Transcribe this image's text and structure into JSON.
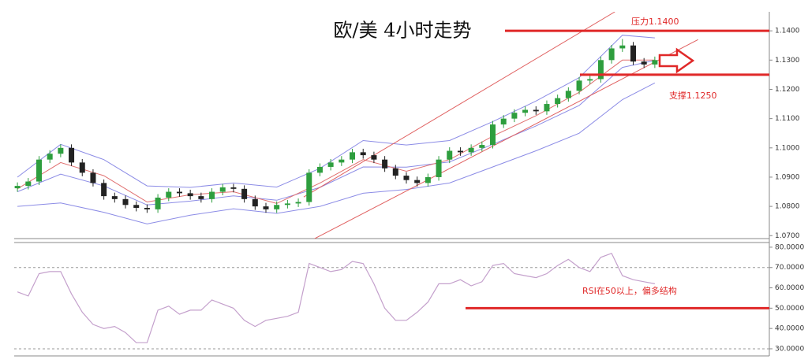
{
  "chart_data": [
    {
      "type": "candlestick",
      "title": "欧/美 4小时走势",
      "open": [
        1.0862,
        1.087,
        1.0885,
        1.096,
        1.098,
        1.1,
        1.095,
        1.0915,
        1.088,
        1.0835,
        1.0825,
        1.0805,
        1.0795,
        1.079,
        1.083,
        1.085,
        1.0845,
        1.0835,
        1.0825,
        1.085,
        1.0865,
        1.086,
        1.0825,
        1.08,
        1.079,
        1.0805,
        1.081,
        1.0815,
        1.0915,
        1.0935,
        1.095,
        1.096,
        1.0985,
        1.0975,
        1.096,
        1.093,
        1.0905,
        1.089,
        1.088,
        1.09,
        1.096,
        1.099,
        1.0985,
        1.1,
        1.101,
        1.108,
        1.11,
        1.112,
        1.113,
        1.1125,
        1.115,
        1.117,
        1.1195,
        1.123,
        1.1235,
        1.13,
        1.134,
        1.135,
        1.1295,
        1.1285
      ],
      "high": [
        1.0882,
        1.0897,
        1.0972,
        1.0992,
        1.1012,
        1.1012,
        1.0962,
        1.0927,
        1.0892,
        1.0847,
        1.0837,
        1.0817,
        1.0807,
        1.0842,
        1.0862,
        1.0862,
        1.0857,
        1.0847,
        1.0862,
        1.0877,
        1.0877,
        1.0872,
        1.0837,
        1.0812,
        1.0817,
        1.0822,
        1.0827,
        1.0927,
        1.0947,
        1.0962,
        1.0972,
        1.0997,
        1.0997,
        1.0987,
        1.0972,
        1.0942,
        1.0917,
        1.0902,
        1.0912,
        1.0972,
        1.1002,
        1.1002,
        1.1012,
        1.1022,
        1.1092,
        1.1112,
        1.1132,
        1.1142,
        1.1142,
        1.1162,
        1.1182,
        1.1207,
        1.1242,
        1.1247,
        1.1312,
        1.1352,
        1.1372,
        1.1362,
        1.1307,
        1.1312
      ],
      "low": [
        1.085,
        1.0858,
        1.0873,
        1.0948,
        1.0968,
        1.0938,
        1.0903,
        1.0868,
        1.0823,
        1.0813,
        1.0793,
        1.0783,
        1.0778,
        1.0778,
        1.0818,
        1.0833,
        1.0823,
        1.0813,
        1.0813,
        1.0838,
        1.0848,
        1.0813,
        1.0788,
        1.0778,
        1.0778,
        1.0793,
        1.0798,
        1.0803,
        1.0903,
        1.0923,
        1.0938,
        1.0948,
        1.0963,
        1.0948,
        1.0918,
        1.0893,
        1.0878,
        1.0868,
        1.0868,
        1.0888,
        1.0948,
        1.0973,
        1.0973,
        1.0988,
        1.0998,
        1.1068,
        1.1088,
        1.1108,
        1.1113,
        1.1113,
        1.1138,
        1.1158,
        1.1183,
        1.1218,
        1.1223,
        1.1288,
        1.1328,
        1.1283,
        1.1273,
        1.1273
      ],
      "close": [
        1.087,
        1.0885,
        1.096,
        1.098,
        1.1,
        1.095,
        1.0915,
        1.088,
        1.0835,
        1.0825,
        1.0805,
        1.0795,
        1.079,
        1.083,
        1.085,
        1.0845,
        1.0835,
        1.0825,
        1.085,
        1.0865,
        1.086,
        1.0825,
        1.08,
        1.079,
        1.0805,
        1.081,
        1.0815,
        1.0915,
        1.0935,
        1.095,
        1.096,
        1.0985,
        1.0975,
        1.096,
        1.093,
        1.0905,
        1.089,
        1.088,
        1.09,
        1.096,
        1.099,
        1.0985,
        1.1,
        1.101,
        1.108,
        1.11,
        1.112,
        1.113,
        1.1125,
        1.115,
        1.117,
        1.1195,
        1.123,
        1.1235,
        1.13,
        1.134,
        1.135,
        1.1295,
        1.1285,
        1.13
      ],
      "up_color": "#2e9e3e",
      "down_color": "#222222",
      "xlim": [
        -0.3,
        69.6
      ],
      "ylim": [
        1.069,
        1.1465
      ],
      "yticks": [
        {
          "value": 1.07,
          "label": "1.0700"
        },
        {
          "value": 1.08,
          "label": "1.0800"
        },
        {
          "value": 1.09,
          "label": "1.0900"
        },
        {
          "value": 1.1,
          "label": "1.1000"
        },
        {
          "value": 1.11,
          "label": "1.1100"
        },
        {
          "value": 1.12,
          "label": "1.1200"
        },
        {
          "value": 1.13,
          "label": "1.1300"
        },
        {
          "value": 1.14,
          "label": "1.1400"
        }
      ],
      "bands": {
        "color": "#8c8ce6",
        "x": [
          0,
          4,
          8,
          12,
          16,
          20,
          24,
          28,
          32,
          36,
          40,
          44,
          48,
          52,
          56,
          59
        ],
        "upper": [
          1.09,
          1.1012,
          1.096,
          1.087,
          1.0865,
          1.088,
          1.0866,
          1.093,
          1.1025,
          1.101,
          1.1025,
          1.109,
          1.116,
          1.124,
          1.1385,
          1.1376
        ],
        "middle": [
          1.085,
          1.091,
          1.087,
          1.0805,
          1.0818,
          1.0836,
          1.0821,
          1.0865,
          1.0935,
          1.0934,
          1.0952,
          1.1012,
          1.1075,
          1.1145,
          1.1275,
          1.1299
        ],
        "lower": [
          1.08,
          1.0812,
          1.078,
          1.074,
          1.077,
          1.0792,
          1.0776,
          1.08,
          1.0845,
          1.0858,
          1.088,
          1.0935,
          1.099,
          1.105,
          1.1165,
          1.1222
        ]
      },
      "ma": {
        "color": "#e07070",
        "x": [
          0,
          4,
          8,
          12,
          16,
          20,
          24,
          28,
          32,
          36,
          40,
          44,
          48,
          52,
          56,
          59
        ],
        "values": [
          1.086,
          1.095,
          1.0905,
          1.0815,
          1.084,
          1.085,
          1.081,
          1.088,
          1.096,
          1.092,
          1.096,
          1.104,
          1.111,
          1.119,
          1.13,
          1.13
        ]
      },
      "trendlines": [
        {
          "color": "#e06060",
          "points": [
            26.5,
            1.0832,
            55.3,
            1.1465
          ]
        },
        {
          "color": "#e06060",
          "points": [
            27.2,
            1.0684,
            63,
            1.137
          ]
        }
      ],
      "levels": [
        {
          "label": "压力1.1400",
          "value": 1.14,
          "color": "#e02828"
        },
        {
          "label": "支撑1.1250",
          "value": 1.125,
          "color": "#e02828"
        }
      ]
    },
    {
      "type": "line",
      "values": [
        58,
        56,
        67,
        68,
        68,
        57,
        48,
        42,
        40,
        41,
        38,
        33,
        33,
        49,
        51,
        47,
        49,
        49,
        54,
        52,
        50,
        44,
        41,
        44,
        45,
        46,
        48,
        72,
        70,
        68,
        69,
        73,
        72,
        62,
        50,
        44,
        44,
        48,
        53,
        62,
        62,
        64,
        61,
        63,
        71,
        72,
        67,
        66,
        65,
        67,
        71,
        74,
        70,
        68,
        75,
        77,
        66,
        64,
        63,
        62
      ],
      "color": "#c4a0cc",
      "xlim": [
        -0.3,
        69.6
      ],
      "ylim": [
        26.5,
        82.3
      ],
      "yticks": [
        {
          "value": 30,
          "label": "30.0000"
        },
        {
          "value": 40,
          "label": "40.0000"
        },
        {
          "value": 50,
          "label": "50.0000"
        },
        {
          "value": 60,
          "label": "60.0000"
        },
        {
          "value": 70,
          "label": "70.0000"
        },
        {
          "value": 80,
          "label": "80.0000"
        }
      ],
      "ref_lines": [
        70,
        30
      ],
      "level": {
        "label": "RSI在50以上，偏多结构",
        "value": 50,
        "color": "#e02828"
      }
    }
  ]
}
